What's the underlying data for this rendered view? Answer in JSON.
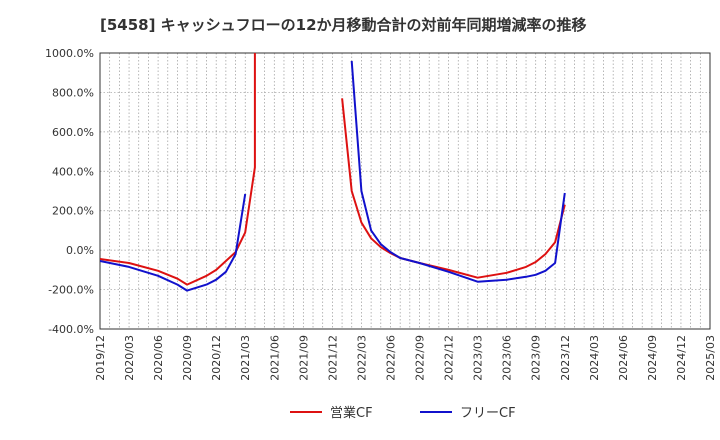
{
  "chart_data": {
    "type": "line",
    "title": "[5458]  キャッシュフローの12か月移動合計の対前年同期増減率の推移",
    "xlabel": "",
    "ylabel": "",
    "ylim": [
      -400,
      1000
    ],
    "y_ticks": [
      -400,
      -200,
      0,
      200,
      400,
      600,
      800,
      1000
    ],
    "y_tick_labels": [
      "-400.0%",
      "-200.0%",
      "0.0%",
      "200.0%",
      "400.0%",
      "600.0%",
      "800.0%",
      "1000.0%"
    ],
    "x_start": "2019-12",
    "x_end": "2025-03",
    "x_tick_labels": [
      "2019/12",
      "2020/03",
      "2020/06",
      "2020/09",
      "2020/12",
      "2021/03",
      "2021/06",
      "2021/09",
      "2021/12",
      "2022/03",
      "2022/06",
      "2022/09",
      "2022/12",
      "2023/03",
      "2023/06",
      "2023/09",
      "2023/12",
      "2024/03",
      "2024/06",
      "2024/09",
      "2024/12",
      "2025/03"
    ],
    "grid": true,
    "legend_position": "bottom-center",
    "series": [
      {
        "name": "営業CF",
        "color": "#dd1111",
        "segments": [
          [
            {
              "x": "2019-12",
              "y": -45
            },
            {
              "x": "2020-03",
              "y": -65
            },
            {
              "x": "2020-06",
              "y": -105
            },
            {
              "x": "2020-08",
              "y": -145
            },
            {
              "x": "2020-09",
              "y": -175
            },
            {
              "x": "2020-11",
              "y": -130
            },
            {
              "x": "2020-12",
              "y": -100
            },
            {
              "x": "2021-02",
              "y": -10
            },
            {
              "x": "2021-03",
              "y": 90
            },
            {
              "x": "2021-04",
              "y": 420
            },
            {
              "x": "2021-04",
              "y": 1000
            }
          ],
          [
            {
              "x": "2022-01",
              "y": 770
            },
            {
              "x": "2022-02",
              "y": 300
            },
            {
              "x": "2022-03",
              "y": 140
            },
            {
              "x": "2022-04",
              "y": 60
            },
            {
              "x": "2022-05",
              "y": 15
            },
            {
              "x": "2022-06",
              "y": -15
            },
            {
              "x": "2022-07",
              "y": -40
            },
            {
              "x": "2022-09",
              "y": -65
            },
            {
              "x": "2022-12",
              "y": -100
            },
            {
              "x": "2023-03",
              "y": -140
            },
            {
              "x": "2023-06",
              "y": -115
            },
            {
              "x": "2023-08",
              "y": -85
            },
            {
              "x": "2023-09",
              "y": -60
            },
            {
              "x": "2023-10",
              "y": -20
            },
            {
              "x": "2023-11",
              "y": 40
            },
            {
              "x": "2023-12",
              "y": 230
            }
          ]
        ]
      },
      {
        "name": "フリーCF",
        "color": "#1111cc",
        "segments": [
          [
            {
              "x": "2019-12",
              "y": -55
            },
            {
              "x": "2020-03",
              "y": -85
            },
            {
              "x": "2020-06",
              "y": -130
            },
            {
              "x": "2020-08",
              "y": -175
            },
            {
              "x": "2020-09",
              "y": -205
            },
            {
              "x": "2020-11",
              "y": -175
            },
            {
              "x": "2020-12",
              "y": -150
            },
            {
              "x": "2021-01",
              "y": -110
            },
            {
              "x": "2021-02",
              "y": -20
            },
            {
              "x": "2021-03",
              "y": 285
            }
          ],
          [
            {
              "x": "2022-02",
              "y": 960
            },
            {
              "x": "2022-03",
              "y": 300
            },
            {
              "x": "2022-04",
              "y": 100
            },
            {
              "x": "2022-05",
              "y": 30
            },
            {
              "x": "2022-06",
              "y": -10
            },
            {
              "x": "2022-07",
              "y": -40
            },
            {
              "x": "2022-09",
              "y": -65
            },
            {
              "x": "2022-12",
              "y": -110
            },
            {
              "x": "2023-03",
              "y": -160
            },
            {
              "x": "2023-06",
              "y": -150
            },
            {
              "x": "2023-08",
              "y": -135
            },
            {
              "x": "2023-09",
              "y": -125
            },
            {
              "x": "2023-10",
              "y": -105
            },
            {
              "x": "2023-11",
              "y": -65
            },
            {
              "x": "2023-12",
              "y": 290
            }
          ]
        ]
      }
    ]
  }
}
